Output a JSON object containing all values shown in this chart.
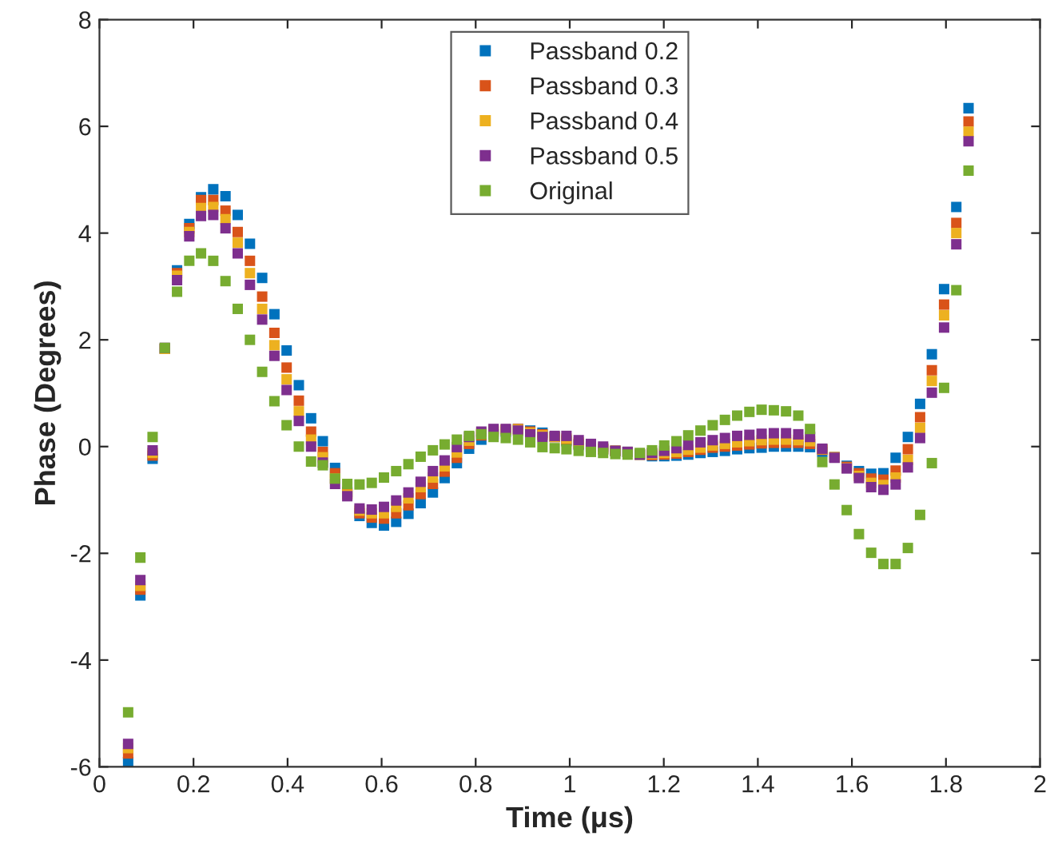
{
  "chart_data": {
    "type": "scatter",
    "xlabel": "Time (μs)",
    "ylabel": "Phase (Degrees)",
    "xlim": [
      0,
      2
    ],
    "ylim": [
      -6,
      8
    ],
    "xticks": [
      0,
      0.2,
      0.4,
      0.6,
      0.8,
      1,
      1.2,
      1.4,
      1.6,
      1.8,
      2
    ],
    "yticks": [
      -6,
      -4,
      -2,
      0,
      2,
      4,
      6,
      8
    ],
    "grid": false,
    "legend": "top",
    "marker": "square",
    "x": [
      0.061,
      0.087,
      0.113,
      0.139,
      0.165,
      0.191,
      0.216,
      0.242,
      0.268,
      0.294,
      0.32,
      0.346,
      0.372,
      0.398,
      0.424,
      0.45,
      0.475,
      0.501,
      0.527,
      0.553,
      0.579,
      0.605,
      0.631,
      0.657,
      0.683,
      0.709,
      0.734,
      0.76,
      0.786,
      0.812,
      0.838,
      0.864,
      0.89,
      0.916,
      0.942,
      0.968,
      0.993,
      1.019,
      1.045,
      1.071,
      1.097,
      1.123,
      1.149,
      1.175,
      1.201,
      1.227,
      1.252,
      1.278,
      1.304,
      1.33,
      1.356,
      1.382,
      1.408,
      1.434,
      1.46,
      1.486,
      1.511,
      1.537,
      1.563,
      1.589,
      1.615,
      1.641,
      1.667,
      1.693,
      1.719,
      1.745,
      1.77,
      1.796,
      1.822,
      1.848
    ],
    "series": [
      {
        "name": "Passband 0.2",
        "color": "#0072bd",
        "values": [
          -5.91,
          -2.79,
          -0.23,
          1.83,
          3.3,
          4.17,
          4.67,
          4.82,
          4.69,
          4.34,
          3.8,
          3.16,
          2.48,
          1.8,
          1.15,
          0.53,
          0.1,
          -0.4,
          -0.85,
          -1.3,
          -1.43,
          -1.48,
          -1.41,
          -1.26,
          -1.06,
          -0.86,
          -0.59,
          -0.31,
          -0.04,
          0.13,
          0.23,
          0.28,
          0.33,
          0.3,
          0.26,
          0.18,
          0.1,
          0.03,
          -0.02,
          -0.05,
          -0.08,
          -0.1,
          -0.15,
          -0.18,
          -0.18,
          -0.17,
          -0.15,
          -0.12,
          -0.1,
          -0.08,
          -0.05,
          -0.03,
          -0.02,
          0.0,
          0.0,
          0.0,
          -0.01,
          -0.1,
          -0.2,
          -0.36,
          -0.46,
          -0.51,
          -0.5,
          -0.21,
          0.18,
          0.8,
          1.73,
          2.95,
          4.49,
          6.34
        ]
      },
      {
        "name": "Passband 0.3",
        "color": "#d95319",
        "values": [
          -5.75,
          -2.68,
          -0.17,
          1.83,
          3.25,
          4.09,
          4.62,
          4.62,
          4.42,
          4.02,
          3.48,
          2.81,
          2.13,
          1.48,
          0.86,
          0.28,
          -0.1,
          -0.5,
          -0.88,
          -1.25,
          -1.33,
          -1.35,
          -1.25,
          -1.1,
          -0.89,
          -0.7,
          -0.47,
          -0.21,
          0.05,
          0.21,
          0.28,
          0.31,
          0.33,
          0.28,
          0.23,
          0.18,
          0.12,
          0.05,
          0.0,
          -0.05,
          -0.08,
          -0.1,
          -0.15,
          -0.16,
          -0.15,
          -0.13,
          -0.1,
          -0.06,
          -0.02,
          0.0,
          0.02,
          0.04,
          0.06,
          0.07,
          0.07,
          0.07,
          0.05,
          -0.06,
          -0.2,
          -0.38,
          -0.5,
          -0.6,
          -0.62,
          -0.45,
          -0.05,
          0.55,
          1.43,
          2.66,
          4.19,
          6.09
        ]
      },
      {
        "name": "Passband 0.4",
        "color": "#edb120",
        "values": [
          -5.65,
          -2.61,
          -0.12,
          1.83,
          3.2,
          4.02,
          4.47,
          4.49,
          4.26,
          3.82,
          3.25,
          2.58,
          1.9,
          1.26,
          0.66,
          0.13,
          -0.2,
          -0.6,
          -0.9,
          -1.2,
          -1.25,
          -1.25,
          -1.13,
          -0.97,
          -0.76,
          -0.58,
          -0.37,
          -0.11,
          0.11,
          0.25,
          0.31,
          0.32,
          0.32,
          0.26,
          0.21,
          0.18,
          0.15,
          0.08,
          null,
          -0.03,
          -0.08,
          null,
          -0.15,
          -0.14,
          -0.12,
          -0.1,
          -0.06,
          -0.02,
          0.02,
          0.05,
          0.08,
          0.1,
          0.12,
          0.13,
          0.13,
          0.12,
          0.1,
          -0.05,
          -0.2,
          -0.4,
          -0.55,
          -0.68,
          -0.72,
          -0.58,
          -0.25,
          0.35,
          1.23,
          2.46,
          4.0,
          5.9
        ]
      },
      {
        "name": "Passband 0.5",
        "color": "#7e2f8e",
        "values": [
          -5.57,
          -2.5,
          -0.07,
          1.85,
          3.12,
          3.94,
          4.32,
          4.34,
          4.09,
          3.62,
          3.03,
          2.38,
          1.7,
          1.06,
          0.48,
          0.0,
          -0.3,
          -0.7,
          -0.93,
          -1.16,
          -1.18,
          -1.13,
          -1.01,
          -0.86,
          -0.66,
          -0.46,
          -0.26,
          -0.01,
          0.18,
          0.28,
          0.33,
          0.33,
          0.3,
          0.23,
          0.18,
          0.2,
          0.2,
          0.12,
          0.05,
          0.0,
          -0.08,
          -0.1,
          -0.15,
          -0.12,
          -0.08,
          -0.03,
          0.03,
          0.08,
          0.12,
          0.16,
          0.2,
          0.22,
          0.24,
          0.25,
          0.25,
          0.23,
          0.18,
          -0.04,
          -0.21,
          -0.41,
          -0.59,
          -0.76,
          -0.81,
          -0.71,
          -0.39,
          0.16,
          1.01,
          2.23,
          3.79,
          5.72
        ]
      },
      {
        "name": "Original",
        "color": "#77ac30",
        "values": [
          -4.98,
          -2.08,
          0.18,
          1.85,
          2.9,
          3.48,
          3.62,
          3.48,
          3.1,
          2.58,
          2.0,
          1.4,
          0.85,
          0.4,
          0.0,
          -0.28,
          -0.35,
          -0.6,
          -0.7,
          -0.71,
          -0.68,
          -0.58,
          -0.46,
          -0.33,
          -0.19,
          -0.07,
          0.04,
          0.13,
          0.2,
          0.23,
          0.18,
          0.16,
          0.13,
          0.08,
          -0.01,
          -0.03,
          -0.05,
          -0.08,
          -0.1,
          -0.12,
          -0.14,
          -0.15,
          -0.12,
          -0.07,
          0.02,
          0.1,
          0.21,
          0.3,
          0.4,
          0.5,
          0.58,
          0.65,
          0.69,
          0.68,
          0.66,
          0.58,
          0.33,
          -0.29,
          -0.71,
          -1.19,
          -1.64,
          -1.99,
          -2.2,
          -2.2,
          -1.9,
          -1.28,
          -0.31,
          1.1,
          2.93,
          5.17
        ]
      }
    ]
  }
}
